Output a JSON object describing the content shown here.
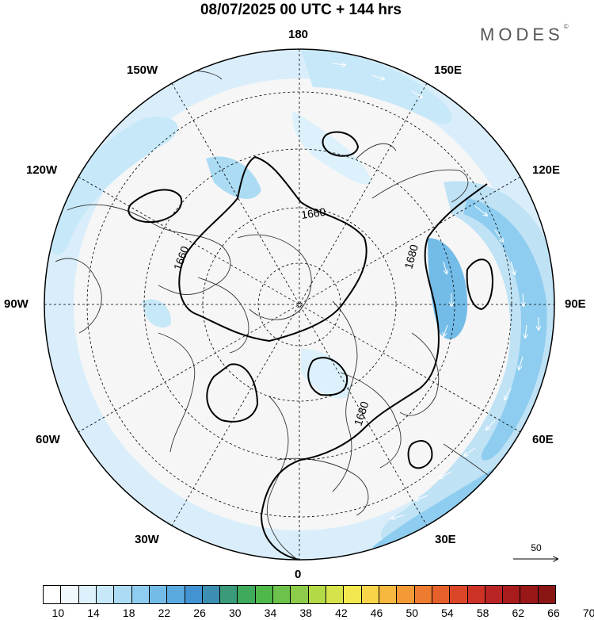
{
  "title": "08/07/2025  00 UTC  + 144 hrs",
  "brand": "MODES",
  "brand_mark": "©",
  "longitude_labels": {
    "top": "180",
    "bottom": "0",
    "left": "90W",
    "right": "90E",
    "lon150w": "150W",
    "lon150e": "150E",
    "lon120w": "120W",
    "lon120e": "120E",
    "lon60w": "60W",
    "lon60e": "60E",
    "lon30w": "30W",
    "lon30e": "30E"
  },
  "contour_labels": [
    "1660",
    "1660",
    "1680",
    "1680"
  ],
  "reference_vector": "50",
  "colorbar": {
    "colors": [
      "#ffffff",
      "#eef8fd",
      "#dcf1fb",
      "#c6e8f8",
      "#abdcf4",
      "#8ecdef",
      "#74bce8",
      "#5aa9df",
      "#4393d2",
      "#3c8fb0",
      "#3a9a7a",
      "#3fa95c",
      "#4fb84a",
      "#6cc24a",
      "#8ccc4a",
      "#b3d946",
      "#d6e34a",
      "#f3e84f",
      "#f8d44a",
      "#f6b83f",
      "#f39a37",
      "#ee7c30",
      "#e6602b",
      "#db4628",
      "#cc3226",
      "#b92424",
      "#a81c1c",
      "#981818",
      "#8a1515"
    ],
    "tick_labels": [
      "10",
      "14",
      "18",
      "22",
      "26",
      "30",
      "34",
      "38",
      "42",
      "46",
      "50",
      "54",
      "58",
      "62",
      "66",
      "70"
    ]
  },
  "icons": {
    "map": "polar-stereographic-map",
    "wind": "wind-vector-arrows"
  }
}
